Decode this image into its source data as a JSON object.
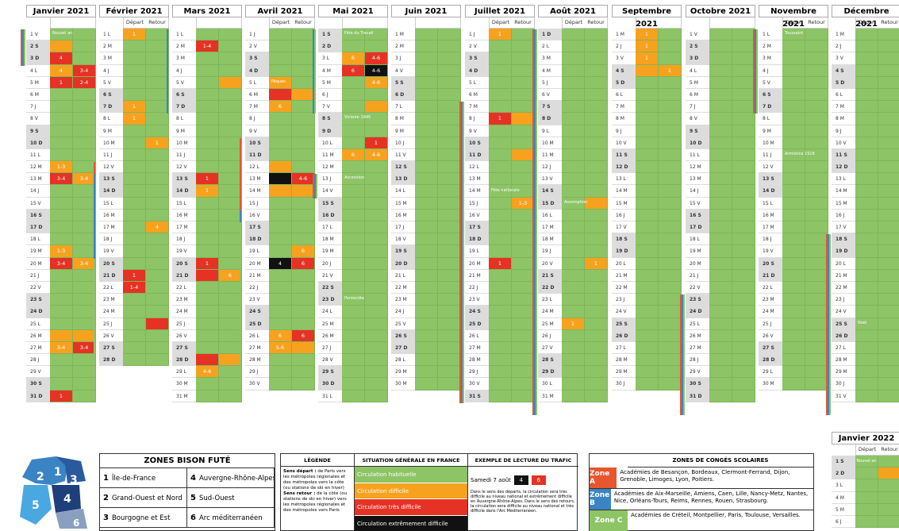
{
  "months": [
    {
      "name": "Janvier 2021",
      "x": 33,
      "show_dr": false,
      "days": [
        "1 V",
        "2 S",
        "3 D",
        "4 L",
        "5 M",
        "6 M",
        "7 J",
        "8 V",
        "9 S",
        "10 D",
        "11 L",
        "12 M",
        "13 M",
        "14 J",
        "15 V",
        "16 S",
        "17 D",
        "18 L",
        "19 M",
        "20 M",
        "21 J",
        "22 V",
        "23 S",
        "24 D",
        "25 L",
        "26 M",
        "27 M",
        "28 J",
        "29 V",
        "30 S",
        "31 D"
      ]
    },
    {
      "name": "Février 2021",
      "x": 125,
      "show_dr": true,
      "days": [
        "1 L",
        "2 M",
        "3 M",
        "4 J",
        "5 V",
        "6 S",
        "7 D",
        "8 L",
        "9 M",
        "10 M",
        "11 J",
        "12 V",
        "13 S",
        "14 D",
        "15 L",
        "16 M",
        "17 M",
        "18 J",
        "19 V",
        "20 S",
        "21 D",
        "22 L",
        "23 M",
        "24 M",
        "25 J",
        "26 V",
        "27 S",
        "28 D"
      ]
    },
    {
      "name": "Mars 2021",
      "x": 217,
      "show_dr": false,
      "days": [
        "1 L",
        "2 M",
        "3 M",
        "4 J",
        "5 V",
        "6 S",
        "7 D",
        "8 L",
        "9 M",
        "10 M",
        "11 J",
        "12 V",
        "13 S",
        "14 D",
        "15 L",
        "16 M",
        "17 M",
        "18 J",
        "19 V",
        "20 S",
        "21 D",
        "22 L",
        "23 M",
        "24 M",
        "25 J",
        "26 V",
        "27 S",
        "28 D",
        "29 L",
        "30 M",
        "31 M"
      ]
    },
    {
      "name": "Avril 2021",
      "x": 309,
      "show_dr": true,
      "days": [
        "1 J",
        "2 V",
        "3 S",
        "4 D",
        "5 L",
        "6 M",
        "7 M",
        "8 J",
        "9 V",
        "10 S",
        "11 D",
        "12 L",
        "13 M",
        "14 M",
        "15 J",
        "16 V",
        "17 S",
        "18 D",
        "19 L",
        "20 M",
        "21 M",
        "22 J",
        "23 V",
        "24 S",
        "25 D",
        "26 L",
        "27 M",
        "28 M",
        "29 J",
        "30 V"
      ]
    },
    {
      "name": "Mai 2021",
      "x": 401,
      "show_dr": false,
      "days": [
        "1 S",
        "2 D",
        "3 L",
        "4 M",
        "5 M",
        "6 J",
        "7 V",
        "8 S",
        "9 D",
        "10 L",
        "11 M",
        "12 M",
        "13 J",
        "14 V",
        "15 S",
        "16 D",
        "17 L",
        "18 M",
        "19 M",
        "20 J",
        "21 V",
        "22 S",
        "23 D",
        "24 L",
        "25 M",
        "26 M",
        "27 J",
        "28 V",
        "29 S",
        "30 D",
        "31 L"
      ]
    },
    {
      "name": "Juin 2021",
      "x": 493,
      "show_dr": false,
      "days": [
        "1 M",
        "2 M",
        "3 J",
        "4 V",
        "5 S",
        "6 D",
        "7 L",
        "8 M",
        "9 M",
        "10 J",
        "11 V",
        "12 S",
        "13 D",
        "14 L",
        "15 M",
        "16 M",
        "17 J",
        "18 V",
        "19 S",
        "20 D",
        "21 L",
        "22 M",
        "23 M",
        "24 J",
        "25 V",
        "26 S",
        "27 D",
        "28 L",
        "29 M",
        "30 M"
      ]
    },
    {
      "name": "Juillet 2021",
      "x": 586,
      "show_dr": true,
      "days": [
        "1 J",
        "2 V",
        "3 S",
        "4 D",
        "5 L",
        "6 M",
        "7 M",
        "8 J",
        "9 V",
        "10 S",
        "11 D",
        "12 L",
        "13 M",
        "14 M",
        "15 J",
        "16 V",
        "17 S",
        "18 D",
        "19 L",
        "20 M",
        "21 M",
        "22 J",
        "23 V",
        "24 S",
        "25 D",
        "26 L",
        "27 M",
        "28 M",
        "29 J",
        "30 V",
        "31 S"
      ]
    },
    {
      "name": "Août 2021",
      "x": 678,
      "show_dr": true,
      "days": [
        "1 D",
        "2 L",
        "3 M",
        "4 M",
        "5 J",
        "6 V",
        "7 S",
        "8 D",
        "9 L",
        "10 M",
        "11 M",
        "12 J",
        "13 V",
        "14 S",
        "15 D",
        "16 L",
        "17 M",
        "18 M",
        "19 J",
        "20 V",
        "21 S",
        "22 D",
        "23 L",
        "24 M",
        "25 M",
        "26 J",
        "27 V",
        "28 S",
        "29 D",
        "30 L",
        "31 M"
      ]
    },
    {
      "name": "Septembre 2021",
      "x": 771,
      "show_dr": false,
      "days": [
        "1 M",
        "2 J",
        "3 V",
        "4 S",
        "5 D",
        "6 L",
        "7 M",
        "8 M",
        "9 J",
        "10 V",
        "11 S",
        "12 D",
        "13 L",
        "14 M",
        "15 M",
        "16 J",
        "17 V",
        "18 S",
        "19 D",
        "20 L",
        "21 M",
        "22 M",
        "23 J",
        "24 V",
        "25 S",
        "26 D",
        "27 L",
        "28 M",
        "29 M",
        "30 J"
      ]
    },
    {
      "name": "Octobre 2021",
      "x": 864,
      "show_dr": false,
      "days": [
        "1 V",
        "2 S",
        "3 D",
        "4 L",
        "5 M",
        "6 M",
        "7 J",
        "8 V",
        "9 S",
        "10 D",
        "11 L",
        "12 M",
        "13 M",
        "14 J",
        "15 V",
        "16 S",
        "17 D",
        "18 L",
        "19 M",
        "20 M",
        "21 J",
        "22 V",
        "23 S",
        "24 D",
        "25 L",
        "26 M",
        "27 M",
        "28 J",
        "29 V",
        "30 S",
        "31 D"
      ]
    },
    {
      "name": "Novembre 2021",
      "x": 956,
      "show_dr": true,
      "days": [
        "1 L",
        "2 M",
        "3 M",
        "4 J",
        "5 V",
        "6 S",
        "7 D",
        "8 L",
        "9 M",
        "10 M",
        "11 J",
        "12 V",
        "13 S",
        "14 D",
        "15 L",
        "16 M",
        "17 M",
        "18 J",
        "19 V",
        "20 S",
        "21 D",
        "22 L",
        "23 M",
        "24 M",
        "25 J",
        "26 V",
        "27 S",
        "28 D",
        "29 L",
        "30 M"
      ]
    },
    {
      "name": "Décembre 2021",
      "x": 1048,
      "show_dr": true,
      "days": [
        "1 M",
        "2 J",
        "3 V",
        "4 S",
        "5 D",
        "6 L",
        "7 M",
        "8 M",
        "9 J",
        "10 V",
        "11 S",
        "12 D",
        "13 L",
        "14 M",
        "15 M",
        "16 J",
        "17 V",
        "18 S",
        "19 D",
        "20 L",
        "21 M",
        "22 M",
        "23 J",
        "24 V",
        "25 S",
        "26 D",
        "27 L",
        "28 M",
        "29 M",
        "30 J",
        "31 V"
      ]
    }
  ],
  "depart_label": "Départ",
  "retour_label": "Retour",
  "jan2022": {
    "name": "Janvier 2022",
    "days": [
      "1 S",
      "2 D",
      "3 L",
      "4 M",
      "5 M",
      "6 J"
    ],
    "event": "Nouvel an"
  },
  "events": {
    "nouvel_an": "Nouvel an",
    "paques": "Pâques",
    "fete_travail": "Fête du Travail",
    "victoire": "Victoire 1945",
    "ascension": "Ascension",
    "pentecote": "Pentecôte",
    "fete_nationale": "Fête nationale",
    "assomption": "Assomption",
    "toussaint": "Toussaint",
    "armistice": "Armistice 1918",
    "noel": "Noël"
  },
  "zones_bison": {
    "title": "ZONES BISON FUTÉ",
    "items": [
      {
        "n": "1",
        "label": "Île-de-France"
      },
      {
        "n": "4",
        "label": "Auvergne-Rhône-Alpes"
      },
      {
        "n": "2",
        "label": "Grand-Ouest et Nord"
      },
      {
        "n": "5",
        "label": "Sud-Ouest"
      },
      {
        "n": "3",
        "label": "Bourgogne et Est"
      },
      {
        "n": "6",
        "label": "Arc méditerranéen"
      }
    ]
  },
  "legend": {
    "h1": "LÉGENDE",
    "h2": "SITUATION GÉNÉRALE EN FRANCE",
    "h3": "EXEMPLE DE LECTURE DU TRAFIC",
    "depart_b": "Sens départ :",
    "depart_t": " de Paris vers les métropoles régionales et des métropoles vers la côte (ou stations de ski en hiver)",
    "retour_b": "Sens retour :",
    "retour_t": " de la côte (ou stations de ski en hiver) vers les métropoles régionales et des métropoles vers Paris",
    "situations": [
      "Circulation habituelle",
      "Circulation difficile",
      "Circulation très difficile",
      "Circulation extrêmement difficile"
    ],
    "example_day": "Samedi 7 août",
    "example_num1": "4",
    "example_num2": "6",
    "example_text": "Dans le sens des départs, la circulation sera très difficile au niveau national et extrêmement difficile en Auvergne-Rhône-Alpes. Dans le sens des retours, la circulation sera difficile au niveau national et très difficile dans l'Arc Méditerranéen."
  },
  "school": {
    "title": "ZONES DE CONGÉS SCOLAIRES",
    "zones": [
      {
        "name": "Zone A",
        "color": "#e8562d",
        "text": "Académies de Besançon, Bordeaux, Clermont-Ferrand, Dijon, Grenoble, Limoges, Lyon, Poitiers."
      },
      {
        "name": "Zone B",
        "color": "#3b84c4",
        "text": "Académies de Aix-Marseille, Amiens, Caen, Lille, Nancy-Metz, Nantes, Nice, Orléans-Tours, Reims, Rennes, Rouen, Strasbourg."
      },
      {
        "name": "Zone C",
        "color": "#8cc466",
        "text": "Académies de Créteil, Montpellier, Paris, Toulouse, Versailles."
      }
    ]
  },
  "map": {
    "labels": [
      "2",
      "1",
      "3",
      "5",
      "4",
      "6"
    ]
  },
  "colors": {
    "green": "#8cc466",
    "orange": "#f6a21e",
    "red": "#e53224",
    "black": "#111111"
  },
  "marks": [
    [
      1,
      1,
      "o",
      ""
    ],
    [
      2,
      5,
      "r",
      "4"
    ],
    [
      3,
      5,
      "o",
      "4"
    ],
    [
      3,
      5,
      "r2",
      "3-4"
    ],
    [
      4,
      1,
      "r",
      "1-4"
    ],
    [
      4,
      2,
      "r",
      "1"
    ],
    [
      4,
      4,
      "r2",
      "2-4"
    ],
    [
      11,
      11,
      "o",
      "1-3"
    ],
    [
      12,
      12,
      "r",
      "3-4"
    ],
    [
      12,
      12,
      "o2",
      "3-4"
    ],
    [
      18,
      18,
      "o",
      "1-3"
    ],
    [
      19,
      19,
      "r",
      "3-4"
    ],
    [
      19,
      19,
      "o2",
      "3-4"
    ],
    [
      25,
      25,
      "o",
      ""
    ],
    [
      25,
      25,
      "o2",
      ""
    ],
    [
      26,
      26,
      "o",
      "3-4"
    ],
    [
      26,
      26,
      "r2",
      "3-4"
    ],
    [
      30,
      15,
      "r",
      "1"
    ],
    [
      31,
      16,
      "o",
      "1"
    ],
    [
      37,
      22,
      "o",
      "1"
    ],
    [
      38,
      23,
      "o",
      "1"
    ],
    [
      40,
      0,
      "o2",
      "1"
    ],
    [
      47,
      7,
      "o2",
      "4"
    ],
    [
      51,
      11,
      "r",
      "1"
    ],
    [
      52,
      12,
      "r",
      "1-4"
    ],
    [
      55,
      15,
      "r2",
      ""
    ],
    [
      60,
      20,
      "r",
      "1-4"
    ],
    [
      63,
      23,
      "o2",
      ""
    ],
    [
      71,
      1,
      "r",
      "1"
    ],
    [
      72,
      2,
      "o",
      "1"
    ],
    [
      78,
      8,
      "r",
      "1"
    ],
    [
      79,
      9,
      "r",
      ""
    ],
    [
      79,
      9,
      "o2",
      "6"
    ],
    [
      86,
      16,
      "r",
      ""
    ],
    [
      86,
      16,
      "o2",
      ""
    ],
    [
      87,
      17,
      "o",
      "4-6"
    ],
    [
      94,
      24,
      "o",
      ""
    ],
    [
      95,
      25,
      "r",
      ""
    ],
    [
      95,
      25,
      "o2",
      ""
    ],
    [
      96,
      26,
      "o",
      "6"
    ],
    [
      101,
      31,
      "o",
      ""
    ],
    [
      102,
      32,
      "k",
      ""
    ],
    [
      102,
      32,
      "r2",
      "4-6"
    ],
    [
      103,
      0,
      "o",
      ""
    ],
    [
      103,
      0,
      "o2",
      ""
    ],
    [
      108,
      5,
      "o2",
      "6"
    ],
    [
      109,
      6,
      "k",
      "4"
    ],
    [
      109,
      6,
      "r2",
      "6"
    ],
    [
      115,
      12,
      "o",
      "6"
    ],
    [
      115,
      12,
      "r2",
      "6"
    ],
    [
      116,
      13,
      "o",
      "5-6"
    ],
    [
      116,
      13,
      "o2",
      ""
    ],
    [
      122,
      19,
      "o",
      "6"
    ],
    [
      122,
      19,
      "r2",
      "4-6"
    ],
    [
      123,
      20,
      "r",
      "6"
    ],
    [
      123,
      20,
      "k2",
      "4-6"
    ],
    [
      124,
      21,
      "o2",
      "4-6"
    ],
    [
      126,
      23,
      "o2",
      ""
    ],
    [
      129,
      26,
      "r2",
      "1"
    ],
    [
      130,
      27,
      "o",
      "6"
    ],
    [
      130,
      27,
      "o2",
      "4-6"
    ],
    [
      181,
      21,
      "o",
      "1"
    ],
    [
      188,
      28,
      "r",
      "1"
    ],
    [
      188,
      28,
      "o2",
      ""
    ],
    [
      191,
      0,
      "o2",
      ""
    ],
    [
      195,
      4,
      "o2",
      "1-3"
    ],
    [
      200,
      9,
      "r",
      "1"
    ],
    [
      226,
      4,
      "o2",
      ""
    ],
    [
      231,
      9,
      "o2",
      "1"
    ],
    [
      236,
      14,
      "o",
      "1"
    ],
    [
      243,
      21,
      "o",
      "1"
    ],
    [
      244,
      22,
      "o",
      "1"
    ],
    [
      245,
      23,
      "o",
      "1"
    ],
    [
      246,
      24,
      "o",
      ""
    ],
    [
      246,
      24,
      "o2",
      "1"
    ]
  ]
}
